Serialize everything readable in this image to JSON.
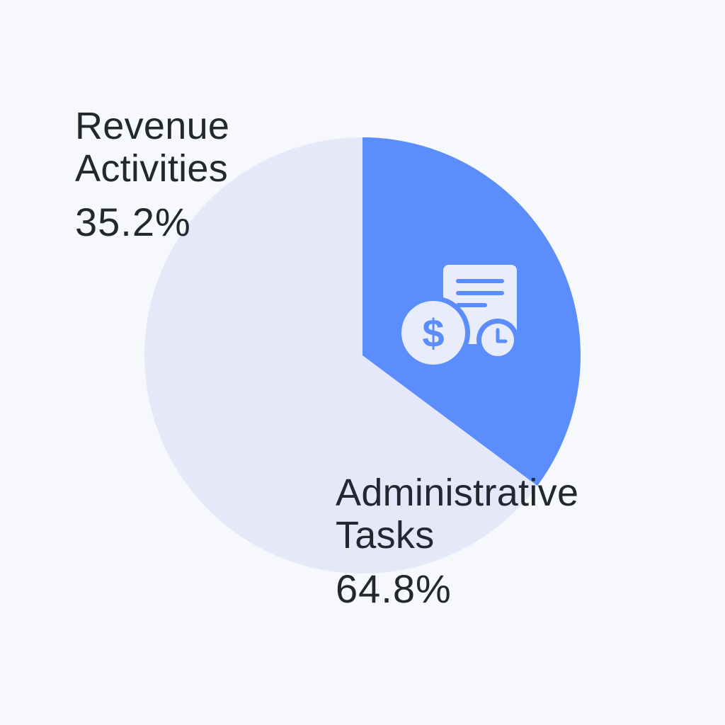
{
  "chart_data": {
    "type": "pie",
    "slices": [
      {
        "name_lines": [
          "Revenue",
          "Activities"
        ],
        "value": 35.2,
        "value_label": "35.2%",
        "color": "#5b8dfc",
        "icon": "revenue-money-document-clock-icon"
      },
      {
        "name_lines": [
          "Administrative",
          "Tasks"
        ],
        "value": 64.8,
        "value_label": "64.8%",
        "color": "#e5e8f9"
      }
    ],
    "title": "",
    "legend": "none"
  },
  "colors": {
    "background": "#f7f8fb",
    "text": "#23272f",
    "icon": "#e9ecfb"
  }
}
